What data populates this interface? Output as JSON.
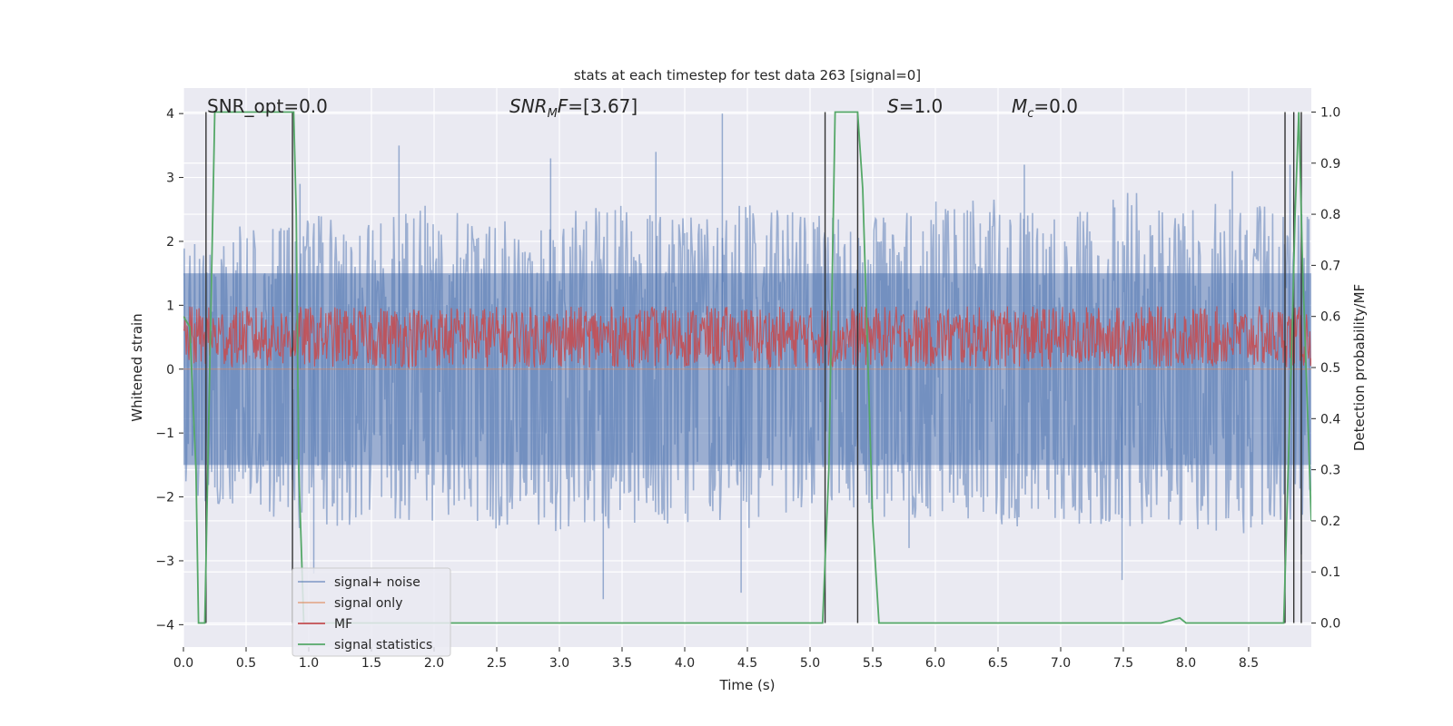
{
  "chart_data": {
    "type": "line",
    "title": "stats at each timestep for test data 263 [signal=0]",
    "xlabel": "Time (s)",
    "ylabel": "Whitened strain",
    "y2label": "Detection probability/MF",
    "xlim": [
      0,
      9.0
    ],
    "ylim": [
      -4.35,
      4.4
    ],
    "y2lim": [
      -0.047,
      1.047
    ],
    "xticks": [
      "0.0",
      "0.5",
      "1.0",
      "1.5",
      "2.0",
      "2.5",
      "3.0",
      "3.5",
      "4.0",
      "4.5",
      "5.0",
      "5.5",
      "6.0",
      "6.5",
      "7.0",
      "7.5",
      "8.0",
      "8.5"
    ],
    "yticks": [
      "4",
      "3",
      "2",
      "1",
      "0",
      "−1",
      "−2",
      "−3",
      "−4"
    ],
    "y2ticks": [
      "1.0",
      "0.9",
      "0.8",
      "0.7",
      "0.6",
      "0.5",
      "0.4",
      "0.3",
      "0.2",
      "0.1",
      "0.0"
    ],
    "annotations": [
      {
        "text": "SNR_opt=0.0"
      },
      {
        "text": "SNR_MF=[3.67]"
      },
      {
        "text": "S=1.0"
      },
      {
        "text": "M_c=0.0"
      }
    ],
    "legend": {
      "placement": "lower left",
      "entries": [
        {
          "label": "signal+ noise",
          "color": "#4c72b0"
        },
        {
          "label": "signal only",
          "color": "#dd8452"
        },
        {
          "label": "MF",
          "color": "#c44e52"
        },
        {
          "label": "signal statistics",
          "color": "#55a868"
        }
      ]
    },
    "series": [
      {
        "name": "signal+ noise",
        "color": "#4c72b0",
        "axis": "left",
        "envelope_upper": {
          "x": [
            0,
            0.5,
            1,
            1.5,
            2,
            2.5,
            3,
            3.5,
            4,
            4.5,
            5,
            5.5,
            6,
            6.5,
            7,
            7.5,
            8,
            8.5,
            9
          ],
          "y": [
            2.0,
            2.3,
            2.5,
            2.5,
            2.6,
            2.3,
            2.5,
            2.6,
            2.5,
            2.6,
            2.5,
            2.4,
            2.7,
            2.7,
            2.4,
            2.8,
            2.6,
            2.6,
            2.4
          ]
        },
        "envelope_lower": {
          "x": [
            0,
            0.5,
            1,
            1.5,
            2,
            2.5,
            3,
            3.5,
            4,
            4.5,
            5,
            5.5,
            6,
            6.5,
            7,
            7.5,
            8,
            8.5,
            9
          ],
          "y": [
            -2.0,
            -2.2,
            -2.6,
            -2.4,
            -2.4,
            -2.5,
            -2.6,
            -2.5,
            -2.4,
            -2.5,
            -2.2,
            -2.3,
            -2.4,
            -2.5,
            -2.4,
            -2.5,
            -2.5,
            -2.6,
            -2.3
          ]
        },
        "peaks": [
          [
            0.93,
            2.9
          ],
          [
            1.72,
            3.5
          ],
          [
            2.93,
            3.3
          ],
          [
            3.77,
            3.4
          ],
          [
            4.3,
            4.0
          ],
          [
            6.71,
            3.2
          ],
          [
            8.37,
            3.1
          ],
          [
            8.83,
            3.2
          ],
          [
            1.04,
            -3.2
          ],
          [
            3.35,
            -3.6
          ],
          [
            4.45,
            -3.5
          ],
          [
            5.79,
            -2.8
          ],
          [
            7.49,
            -3.3
          ],
          [
            8.92,
            -2.9
          ]
        ]
      },
      {
        "name": "signal only",
        "color": "#dd8452",
        "axis": "left",
        "x": [
          0,
          9.0
        ],
        "y": [
          0,
          0
        ]
      },
      {
        "name": "MF",
        "color": "#c44e52",
        "axis": "right",
        "mean": 0.55,
        "band": [
          0.5,
          0.62
        ],
        "x": [
          0,
          0.5,
          1,
          1.5,
          2,
          2.5,
          3,
          3.5,
          4,
          4.5,
          5,
          5.5,
          6,
          6.5,
          7,
          7.5,
          8,
          8.5,
          9
        ],
        "y": [
          0.55,
          0.55,
          0.55,
          0.55,
          0.55,
          0.55,
          0.55,
          0.55,
          0.55,
          0.55,
          0.55,
          0.55,
          0.55,
          0.55,
          0.55,
          0.55,
          0.55,
          0.55,
          0.55
        ]
      },
      {
        "name": "signal statistics",
        "color": "#55a868",
        "axis": "right",
        "x": [
          0.0,
          0.05,
          0.1,
          0.12,
          0.17,
          0.25,
          0.3,
          0.5,
          0.7,
          0.88,
          0.9,
          0.92,
          0.96,
          1.0,
          2.0,
          3.0,
          4.0,
          5.0,
          5.1,
          5.15,
          5.2,
          5.3,
          5.38,
          5.42,
          5.5,
          5.55,
          6.0,
          7.0,
          7.8,
          7.95,
          8.0,
          8.5,
          8.78,
          8.85,
          8.87,
          8.9,
          8.93,
          9.0
        ],
        "y": [
          0.6,
          0.58,
          0.3,
          0.0,
          0.0,
          1.0,
          1.0,
          1.0,
          1.0,
          1.0,
          0.8,
          0.3,
          0.0,
          0.0,
          0.0,
          0.0,
          0.0,
          0.0,
          0.0,
          0.3,
          1.0,
          1.0,
          1.0,
          0.85,
          0.2,
          0.0,
          0.0,
          0.0,
          0.0,
          0.01,
          0.0,
          0.0,
          0.0,
          0.6,
          0.8,
          1.0,
          0.7,
          0.2
        ]
      }
    ],
    "vlines": [
      0.18,
      0.87,
      5.12,
      5.38,
      8.79,
      8.86,
      8.92
    ],
    "vline_color": "#333333",
    "grid": true,
    "background": "#eaeaf2"
  }
}
